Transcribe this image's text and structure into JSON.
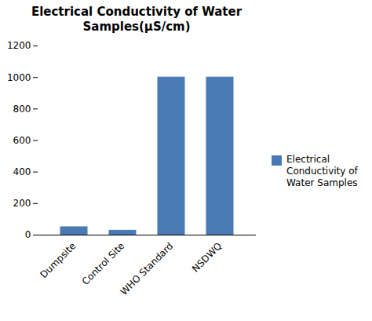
{
  "chart_data": {
    "type": "bar",
    "title": "Electrical Conductivity of Water\nSamples(μS/cm)",
    "categories": [
      "Dumpsite",
      "Control Site",
      "WHO Standard",
      "NSDWQ"
    ],
    "series": [
      {
        "name": "Electrical\nConductivity of\nWater Samples",
        "color": "#4a7ab5",
        "values": [
          50,
          28,
          1000,
          1000
        ]
      }
    ],
    "ylim": [
      0,
      1200
    ],
    "yticks": [
      0,
      200,
      400,
      600,
      800,
      1000,
      1200
    ],
    "grid": false,
    "legend": "right"
  }
}
